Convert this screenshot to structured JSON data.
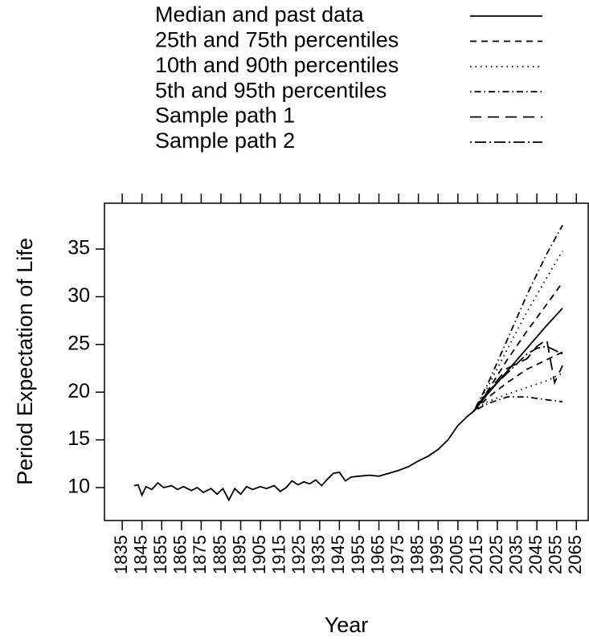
{
  "chart_data": {
    "type": "line",
    "x_label": "Year",
    "y_label": "Period Expectation of Life",
    "xlim": [
      1826,
      2071
    ],
    "ylim": [
      6.55,
      39.8
    ],
    "xticks": [
      1835,
      1845,
      1855,
      1865,
      1875,
      1885,
      1895,
      1905,
      1915,
      1925,
      1935,
      1945,
      1955,
      1965,
      1975,
      1985,
      1995,
      2005,
      2015,
      2025,
      2035,
      2045,
      2055,
      2065
    ],
    "yticks": [
      10,
      15,
      20,
      25,
      30,
      35
    ],
    "color": "#000000",
    "series": [
      {
        "name": "Median and past data",
        "dash": "none",
        "x": [
          1841,
          1843,
          1845,
          1847,
          1850,
          1853,
          1856,
          1860,
          1863,
          1866,
          1870,
          1873,
          1876,
          1880,
          1883,
          1886,
          1889,
          1892,
          1895,
          1898,
          1901,
          1905,
          1908,
          1912,
          1915,
          1918,
          1921,
          1924,
          1927,
          1930,
          1933,
          1936,
          1939,
          1942,
          1945,
          1948,
          1951,
          1955,
          1960,
          1965,
          1970,
          1975,
          1980,
          1985,
          1990,
          1995,
          2000,
          2005,
          2010,
          2013,
          2020,
          2030,
          2040,
          2050,
          2058
        ],
        "values": [
          10.2,
          10.3,
          9.2,
          10.1,
          9.8,
          10.5,
          10.0,
          10.2,
          9.8,
          10.1,
          9.7,
          10.0,
          9.5,
          9.9,
          9.3,
          9.9,
          8.7,
          9.9,
          9.3,
          10.1,
          9.8,
          10.1,
          9.9,
          10.2,
          9.6,
          10.0,
          10.7,
          10.3,
          10.6,
          10.4,
          10.8,
          10.2,
          10.9,
          11.5,
          11.6,
          10.7,
          11.1,
          11.2,
          11.3,
          11.2,
          11.5,
          11.8,
          12.2,
          12.8,
          13.3,
          14.0,
          15.0,
          16.5,
          17.5,
          18.0,
          19.8,
          22.2,
          24.6,
          27.0,
          28.8
        ]
      },
      {
        "name": "25th and 75th percentiles",
        "dash": "8 6",
        "x": [
          2013,
          2020,
          2030,
          2040,
          2050,
          2058
        ],
        "lower": [
          18.0,
          19.4,
          21.0,
          22.4,
          23.4,
          24.2
        ],
        "upper": [
          18.0,
          20.1,
          23.4,
          26.4,
          29.2,
          31.5
        ]
      },
      {
        "name": "10th and 90th percentiles",
        "dash": "1.5 5",
        "x": [
          2013,
          2020,
          2030,
          2040,
          2050,
          2058
        ],
        "lower": [
          18.0,
          19.0,
          19.8,
          20.5,
          21.2,
          22.0
        ],
        "upper": [
          18.0,
          20.5,
          24.5,
          28.4,
          32.0,
          34.8
        ]
      },
      {
        "name": "5th and 95th percentiles",
        "dash": "1.5 4 8 4",
        "x": [
          2013,
          2020,
          2030,
          2040,
          2050,
          2058
        ],
        "lower": [
          18.0,
          18.8,
          19.5,
          19.5,
          19.2,
          19.0
        ],
        "upper": [
          18.0,
          20.8,
          25.5,
          30.2,
          34.5,
          37.5
        ]
      },
      {
        "name": "Sample path 1",
        "dash": "14 8",
        "x": [
          2013,
          2020,
          2030,
          2040,
          2045,
          2050,
          2054,
          2058
        ],
        "values": [
          18.0,
          20.0,
          22.5,
          23.5,
          24.8,
          25.5,
          21.0,
          22.8
        ]
      },
      {
        "name": "Sample path 2",
        "dash": "2 4 14 4",
        "x": [
          2013,
          2020,
          2030,
          2040,
          2045,
          2050,
          2058
        ],
        "values": [
          18.0,
          20.0,
          22.0,
          24.0,
          24.6,
          24.8,
          24.0
        ]
      }
    ]
  }
}
